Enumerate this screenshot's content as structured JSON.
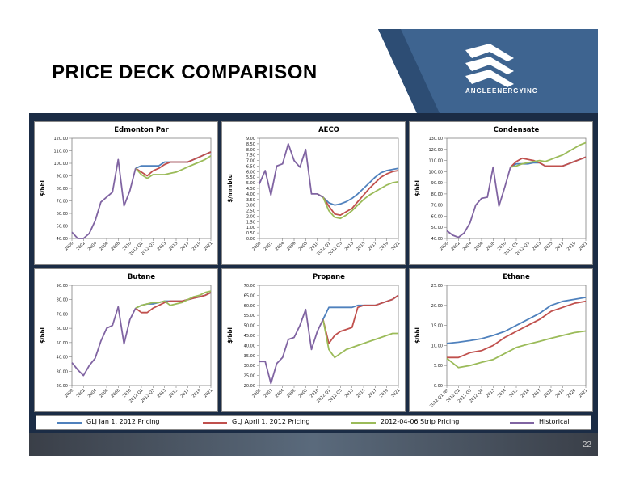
{
  "title": "PRICE DECK COMPARISON",
  "brand": "ANGLEENERGYINC",
  "page_number": "22",
  "legend": [
    {
      "label": "GLJ Jan 1, 2012 Pricing",
      "color": "#4f81bd"
    },
    {
      "label": "GLJ April 1, 2012 Pricing",
      "color": "#c0504d"
    },
    {
      "label": "2012-04-06 Strip Pricing",
      "color": "#9bbb59"
    },
    {
      "label": "Historical",
      "color": "#8064a2"
    }
  ],
  "chart_data": [
    {
      "type": "line",
      "title": "Edmonton Par",
      "ylabel": "$/bbl",
      "ylim": [
        40,
        120
      ],
      "ytick_step": 10,
      "ytick_decimals": 2,
      "x": [
        "2000",
        "2001",
        "2002",
        "2003",
        "2004",
        "2005",
        "2006",
        "2007",
        "2008",
        "2009",
        "2010",
        "2011",
        "2012 Q1",
        "2012 Q2",
        "2012 Q3",
        "2012 Q4",
        "2013",
        "2014",
        "2015",
        "2016",
        "2017",
        "2018",
        "2019",
        "2020",
        "2021"
      ],
      "xticks": [
        "2000",
        "2002",
        "2004",
        "2006",
        "2008",
        "2010",
        "2012 Q1",
        "2012 Q3",
        "2013",
        "2015",
        "2017",
        "2019",
        "2021"
      ],
      "series": [
        {
          "name": "GLJ Jan 1, 2012 Pricing",
          "color": "#4f81bd",
          "values": [
            null,
            null,
            null,
            null,
            null,
            null,
            null,
            null,
            null,
            null,
            null,
            96,
            98,
            98,
            98,
            98,
            101,
            101,
            101,
            101,
            101,
            103,
            105,
            107,
            109
          ]
        },
        {
          "name": "GLJ April 1, 2012 Pricing",
          "color": "#c0504d",
          "values": [
            null,
            null,
            null,
            null,
            null,
            null,
            null,
            null,
            null,
            null,
            null,
            96,
            93,
            90,
            94,
            96,
            99,
            101,
            101,
            101,
            101,
            103,
            105,
            107,
            109
          ]
        },
        {
          "name": "2012-04-06 Strip Pricing",
          "color": "#9bbb59",
          "values": [
            null,
            null,
            null,
            null,
            null,
            null,
            null,
            null,
            null,
            null,
            null,
            96,
            91,
            88,
            91,
            91,
            91,
            92,
            93,
            95,
            97,
            99,
            101,
            103,
            106
          ]
        },
        {
          "name": "Historical",
          "color": "#8064a2",
          "values": [
            45,
            40,
            40,
            44,
            54,
            69,
            73,
            77,
            103,
            66,
            78,
            96,
            null,
            null,
            null,
            null,
            null,
            null,
            null,
            null,
            null,
            null,
            null,
            null,
            null
          ]
        }
      ]
    },
    {
      "type": "line",
      "title": "AECO",
      "ylabel": "$/mmbtu",
      "ylim": [
        0,
        9
      ],
      "ytick_step": 0.5,
      "ytick_decimals": 2,
      "x": [
        "2000",
        "2001",
        "2002",
        "2003",
        "2004",
        "2005",
        "2006",
        "2007",
        "2008",
        "2009",
        "2010",
        "2011",
        "2012 Q1",
        "2012 Q2",
        "2012 Q3",
        "2012 Q4",
        "2013",
        "2014",
        "2015",
        "2016",
        "2017",
        "2018",
        "2019",
        "2020",
        "2021"
      ],
      "xticks": [
        "2000",
        "2002",
        "2004",
        "2006",
        "2008",
        "2010",
        "2012 Q1",
        "2012 Q3",
        "2013",
        "2015",
        "2017",
        "2019",
        "2021"
      ],
      "series": [
        {
          "name": "GLJ Jan 1, 2012 Pricing",
          "color": "#4f81bd",
          "values": [
            null,
            null,
            null,
            null,
            null,
            null,
            null,
            null,
            null,
            null,
            4.0,
            3.7,
            3.2,
            3.0,
            3.1,
            3.3,
            3.6,
            4.0,
            4.5,
            5.0,
            5.5,
            5.9,
            6.1,
            6.2,
            6.3
          ]
        },
        {
          "name": "GLJ April 1, 2012 Pricing",
          "color": "#c0504d",
          "values": [
            null,
            null,
            null,
            null,
            null,
            null,
            null,
            null,
            null,
            null,
            4.0,
            3.7,
            2.9,
            2.2,
            2.1,
            2.4,
            2.7,
            3.3,
            3.9,
            4.5,
            5.0,
            5.5,
            5.8,
            6.0,
            6.1
          ]
        },
        {
          "name": "2012-04-06 Strip Pricing",
          "color": "#9bbb59",
          "values": [
            null,
            null,
            null,
            null,
            null,
            null,
            null,
            null,
            null,
            null,
            4.0,
            3.7,
            2.5,
            1.9,
            1.8,
            2.1,
            2.5,
            3.0,
            3.5,
            3.9,
            4.2,
            4.5,
            4.8,
            5.0,
            5.1
          ]
        },
        {
          "name": "Historical",
          "color": "#8064a2",
          "values": [
            4.9,
            6.1,
            3.9,
            6.5,
            6.7,
            8.5,
            7.0,
            6.4,
            8.0,
            4.0,
            4.0,
            3.7,
            null,
            null,
            null,
            null,
            null,
            null,
            null,
            null,
            null,
            null,
            null,
            null,
            null
          ]
        }
      ]
    },
    {
      "type": "line",
      "title": "Condensate",
      "ylabel": "$/bbl",
      "ylim": [
        40,
        130
      ],
      "ytick_step": 10,
      "ytick_decimals": 2,
      "x": [
        "2000",
        "2001",
        "2002",
        "2003",
        "2004",
        "2005",
        "2006",
        "2007",
        "2008",
        "2009",
        "2010",
        "2011",
        "2012 Q1",
        "2012 Q2",
        "2012 Q3",
        "2012 Q4",
        "2013",
        "2014",
        "2015",
        "2016",
        "2017",
        "2018",
        "2019",
        "2020",
        "2021"
      ],
      "xticks": [
        "2000",
        "2002",
        "2004",
        "2006",
        "2008",
        "2010",
        "2012 Q1",
        "2012 Q3",
        "2013",
        "2015",
        "2017",
        "2019",
        "2021"
      ],
      "series": [
        {
          "name": "GLJ Jan 1, 2012 Pricing",
          "color": "#4f81bd",
          "values": [
            null,
            null,
            null,
            null,
            null,
            null,
            null,
            null,
            null,
            null,
            null,
            104,
            107,
            107,
            107,
            108,
            108,
            105,
            105,
            105,
            105,
            107,
            109,
            111,
            113
          ]
        },
        {
          "name": "GLJ April 1, 2012 Pricing",
          "color": "#c0504d",
          "values": [
            null,
            null,
            null,
            null,
            null,
            null,
            null,
            null,
            null,
            null,
            null,
            104,
            109,
            112,
            111,
            110,
            108,
            105,
            105,
            105,
            105,
            107,
            109,
            111,
            113
          ]
        },
        {
          "name": "2012-04-06 Strip Pricing",
          "color": "#9bbb59",
          "values": [
            null,
            null,
            null,
            null,
            null,
            null,
            null,
            null,
            null,
            null,
            null,
            104,
            105,
            107,
            108,
            109,
            110,
            109,
            111,
            113,
            115,
            118,
            121,
            124,
            126
          ]
        },
        {
          "name": "Historical",
          "color": "#8064a2",
          "values": [
            47,
            43,
            41,
            45,
            54,
            70,
            76,
            77,
            104,
            69,
            86,
            104,
            null,
            null,
            null,
            null,
            null,
            null,
            null,
            null,
            null,
            null,
            null,
            null,
            null
          ]
        }
      ]
    },
    {
      "type": "line",
      "title": "Butane",
      "ylabel": "$/bbl",
      "ylim": [
        20,
        90
      ],
      "ytick_step": 10,
      "ytick_decimals": 2,
      "x": [
        "2000",
        "2001",
        "2002",
        "2003",
        "2004",
        "2005",
        "2006",
        "2007",
        "2008",
        "2009",
        "2010",
        "2011",
        "2012 Q1",
        "2012 Q2",
        "2012 Q3",
        "2012 Q4",
        "2013",
        "2014",
        "2015",
        "2016",
        "2017",
        "2018",
        "2019",
        "2020",
        "2021"
      ],
      "xticks": [
        "2000",
        "2002",
        "2004",
        "2006",
        "2008",
        "2010",
        "2012 Q1",
        "2012 Q3",
        "2013",
        "2015",
        "2017",
        "2019",
        "2021"
      ],
      "series": [
        {
          "name": "GLJ Jan 1, 2012 Pricing",
          "color": "#4f81bd",
          "values": [
            null,
            null,
            null,
            null,
            null,
            null,
            null,
            null,
            null,
            null,
            null,
            74,
            76,
            77,
            77,
            78,
            79,
            79,
            79,
            79,
            80,
            81,
            82,
            83,
            85
          ]
        },
        {
          "name": "GLJ April 1, 2012 Pricing",
          "color": "#c0504d",
          "values": [
            null,
            null,
            null,
            null,
            null,
            null,
            null,
            null,
            null,
            null,
            null,
            74,
            71,
            71,
            74,
            76,
            78,
            79,
            79,
            79,
            80,
            81,
            82,
            83,
            85
          ]
        },
        {
          "name": "2012-04-06 Strip Pricing",
          "color": "#9bbb59",
          "values": [
            null,
            null,
            null,
            null,
            null,
            null,
            null,
            null,
            null,
            null,
            null,
            74,
            76,
            77,
            78,
            78,
            79,
            76,
            77,
            78,
            80,
            82,
            83,
            85,
            86
          ]
        },
        {
          "name": "Historical",
          "color": "#8064a2",
          "values": [
            36,
            31,
            27,
            34,
            39,
            51,
            60,
            62,
            75,
            49,
            66,
            74,
            null,
            null,
            null,
            null,
            null,
            null,
            null,
            null,
            null,
            null,
            null,
            null,
            null
          ]
        }
      ]
    },
    {
      "type": "line",
      "title": "Propane",
      "ylabel": "$/bbl",
      "ylim": [
        20,
        70
      ],
      "ytick_step": 5,
      "ytick_decimals": 2,
      "x": [
        "2000",
        "2001",
        "2002",
        "2003",
        "2004",
        "2005",
        "2006",
        "2007",
        "2008",
        "2009",
        "2010",
        "2011",
        "2012 Q1",
        "2012 Q2",
        "2012 Q3",
        "2012 Q4",
        "2013",
        "2014",
        "2015",
        "2016",
        "2017",
        "2018",
        "2019",
        "2020",
        "2021"
      ],
      "xticks": [
        "2000",
        "2002",
        "2004",
        "2006",
        "2008",
        "2010",
        "2012 Q1",
        "2012 Q3",
        "2013",
        "2015",
        "2017",
        "2019",
        "2021"
      ],
      "series": [
        {
          "name": "GLJ Jan 1, 2012 Pricing",
          "color": "#4f81bd",
          "values": [
            null,
            null,
            null,
            null,
            null,
            null,
            null,
            null,
            null,
            null,
            null,
            53,
            59,
            59,
            59,
            59,
            59,
            60,
            60,
            60,
            60,
            61,
            62,
            63,
            65
          ]
        },
        {
          "name": "GLJ April 1, 2012 Pricing",
          "color": "#c0504d",
          "values": [
            null,
            null,
            null,
            null,
            null,
            null,
            null,
            null,
            null,
            null,
            null,
            53,
            41,
            45,
            47,
            48,
            49,
            59,
            60,
            60,
            60,
            61,
            62,
            63,
            65
          ]
        },
        {
          "name": "2012-04-06 Strip Pricing",
          "color": "#9bbb59",
          "values": [
            null,
            null,
            null,
            null,
            null,
            null,
            null,
            null,
            null,
            null,
            null,
            53,
            38,
            34,
            36,
            38,
            39,
            40,
            41,
            42,
            43,
            44,
            45,
            46,
            46
          ]
        },
        {
          "name": "Historical",
          "color": "#8064a2",
          "values": [
            32,
            32,
            21,
            31,
            34,
            43,
            44,
            50,
            58,
            38,
            47,
            53,
            null,
            null,
            null,
            null,
            null,
            null,
            null,
            null,
            null,
            null,
            null,
            null,
            null
          ]
        }
      ]
    },
    {
      "type": "line",
      "title": "Ethane",
      "ylabel": "$/bbl",
      "ylim": [
        0,
        25
      ],
      "ytick_step": 5,
      "ytick_decimals": 2,
      "x": [
        "2012 Q1 (e)",
        "2012 Q2",
        "2012 Q3",
        "2012 Q4",
        "2013",
        "2014",
        "2015",
        "2016",
        "2017",
        "2018",
        "2019",
        "2020",
        "2021"
      ],
      "xticks": [
        "2012 Q1 (e)",
        "2012 Q2",
        "2012 Q3",
        "2012 Q4",
        "2013",
        "2014",
        "2015",
        "2016",
        "2017",
        "2018",
        "2019",
        "2020",
        "2021"
      ],
      "series": [
        {
          "name": "GLJ Jan 1, 2012 Pricing",
          "color": "#4f81bd",
          "values": [
            10.5,
            10.8,
            11.2,
            11.7,
            12.5,
            13.5,
            15.0,
            16.5,
            18.0,
            20.0,
            21.0,
            21.5,
            22.0
          ]
        },
        {
          "name": "GLJ April 1, 2012 Pricing",
          "color": "#c0504d",
          "values": [
            7.0,
            7.0,
            8.2,
            8.7,
            10.0,
            12.0,
            13.5,
            15.0,
            16.5,
            18.5,
            19.5,
            20.5,
            21.0
          ]
        },
        {
          "name": "2012-04-06 Strip Pricing",
          "color": "#9bbb59",
          "values": [
            6.8,
            4.5,
            5.0,
            5.8,
            6.5,
            8.0,
            9.5,
            10.3,
            11.0,
            11.8,
            12.5,
            13.2,
            13.6
          ]
        },
        {
          "name": "Historical",
          "color": "#8064a2",
          "values": [
            null,
            null,
            null,
            null,
            null,
            null,
            null,
            null,
            null,
            null,
            null,
            null,
            null
          ]
        }
      ]
    }
  ]
}
